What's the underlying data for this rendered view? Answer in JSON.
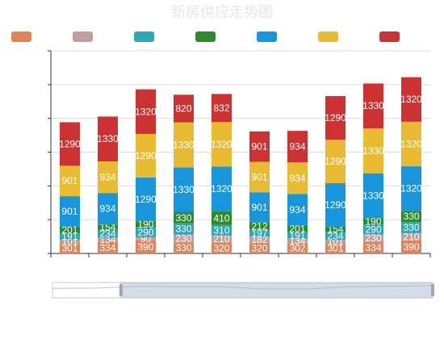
{
  "chart_data": {
    "type": "bar",
    "stacked": true,
    "title": "新房供应走势图",
    "legend_placement": "top",
    "grid": true,
    "ylim": [
      0,
      6000
    ],
    "yticks": [
      0,
      1000,
      2000,
      3000,
      4000,
      5000,
      6000
    ],
    "categories": [
      "",
      "",
      "",
      "",
      "",
      "",
      "",
      "",
      "",
      ""
    ],
    "series": [
      {
        "color": "#e0855a",
        "values": [
          301,
          334,
          390,
          330,
          320,
          320,
          302,
          301,
          334,
          390
        ]
      },
      {
        "color": "#c09f9a",
        "values": [
          101,
          134,
          90,
          230,
          210,
          182,
          134,
          101,
          230,
          210
        ]
      },
      {
        "color": "#2ea7b8",
        "values": [
          191,
          234,
          290,
          330,
          310,
          197,
          191,
          234,
          290,
          330
        ]
      },
      {
        "color": "#2d8a2d",
        "values": [
          201,
          154,
          190,
          330,
          410,
          212,
          201,
          154,
          190,
          330
        ]
      },
      {
        "color": "#1796dc",
        "values": [
          901,
          934,
          1290,
          1330,
          1320,
          901,
          934,
          1290,
          1330,
          1320
        ]
      },
      {
        "color": "#e8bb33",
        "values": [
          901,
          934,
          1290,
          1330,
          1320,
          901,
          934,
          1290,
          1330,
          1320
        ]
      },
      {
        "color": "#cd3232",
        "values": [
          1290,
          1330,
          1320,
          820,
          832,
          901,
          934,
          1290,
          1330,
          1320
        ]
      }
    ],
    "data_zoom": {
      "start": 0.18,
      "end": 1.0
    }
  }
}
